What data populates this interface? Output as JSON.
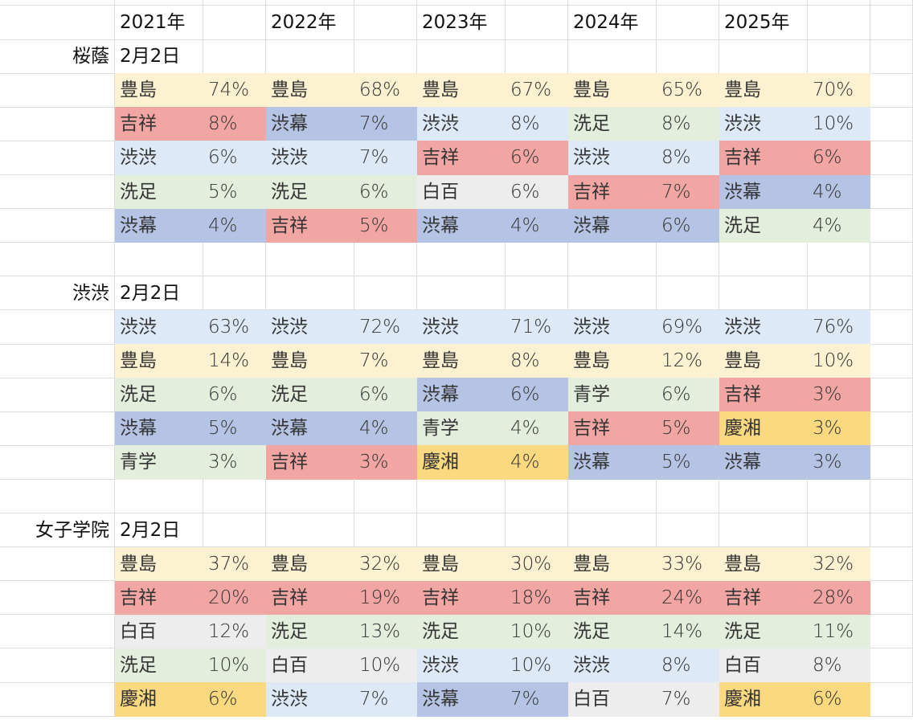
{
  "years": [
    "2021年",
    "2022年",
    "2023年",
    "2024年",
    "2025年"
  ],
  "colors": {
    "豊島": "#fcf1d1",
    "吉祥": "#f2a6a3",
    "渋幕": "#b5c4e4",
    "渋渋": "#dde9f6",
    "洗足": "#e3eedc",
    "白百": "#ededed",
    "慶湘": "#fbd980",
    "青学": "#e3eedc"
  },
  "sections": [
    {
      "school": "桜蔭",
      "date": "2月2日",
      "rows": [
        [
          [
            "豊島",
            "74%"
          ],
          [
            "豊島",
            "68%"
          ],
          [
            "豊島",
            "67%"
          ],
          [
            "豊島",
            "65%"
          ],
          [
            "豊島",
            "70%"
          ]
        ],
        [
          [
            "吉祥",
            "8%"
          ],
          [
            "渋幕",
            "7%"
          ],
          [
            "渋渋",
            "8%"
          ],
          [
            "洗足",
            "8%"
          ],
          [
            "渋渋",
            "10%"
          ]
        ],
        [
          [
            "渋渋",
            "6%"
          ],
          [
            "渋渋",
            "7%"
          ],
          [
            "吉祥",
            "6%"
          ],
          [
            "渋渋",
            "8%"
          ],
          [
            "吉祥",
            "6%"
          ]
        ],
        [
          [
            "洗足",
            "5%"
          ],
          [
            "洗足",
            "6%"
          ],
          [
            "白百",
            "6%"
          ],
          [
            "吉祥",
            "7%"
          ],
          [
            "渋幕",
            "4%"
          ]
        ],
        [
          [
            "渋幕",
            "4%"
          ],
          [
            "吉祥",
            "5%"
          ],
          [
            "渋幕",
            "4%"
          ],
          [
            "渋幕",
            "6%"
          ],
          [
            "洗足",
            "4%"
          ]
        ]
      ]
    },
    {
      "school": "渋渋",
      "date": "2月2日",
      "rows": [
        [
          [
            "渋渋",
            "63%"
          ],
          [
            "渋渋",
            "72%"
          ],
          [
            "渋渋",
            "71%"
          ],
          [
            "渋渋",
            "69%"
          ],
          [
            "渋渋",
            "76%"
          ]
        ],
        [
          [
            "豊島",
            "14%"
          ],
          [
            "豊島",
            "7%"
          ],
          [
            "豊島",
            "8%"
          ],
          [
            "豊島",
            "12%"
          ],
          [
            "豊島",
            "10%"
          ]
        ],
        [
          [
            "洗足",
            "6%"
          ],
          [
            "洗足",
            "6%"
          ],
          [
            "渋幕",
            "6%"
          ],
          [
            "青学",
            "6%"
          ],
          [
            "吉祥",
            "3%"
          ]
        ],
        [
          [
            "渋幕",
            "5%"
          ],
          [
            "渋幕",
            "4%"
          ],
          [
            "青学",
            "4%"
          ],
          [
            "吉祥",
            "5%"
          ],
          [
            "慶湘",
            "3%"
          ]
        ],
        [
          [
            "青学",
            "3%"
          ],
          [
            "吉祥",
            "3%"
          ],
          [
            "慶湘",
            "4%"
          ],
          [
            "渋幕",
            "5%"
          ],
          [
            "渋幕",
            "3%"
          ]
        ]
      ]
    },
    {
      "school": "女子学院",
      "date": "2月2日",
      "rows": [
        [
          [
            "豊島",
            "37%"
          ],
          [
            "豊島",
            "32%"
          ],
          [
            "豊島",
            "30%"
          ],
          [
            "豊島",
            "33%"
          ],
          [
            "豊島",
            "32%"
          ]
        ],
        [
          [
            "吉祥",
            "20%"
          ],
          [
            "吉祥",
            "19%"
          ],
          [
            "吉祥",
            "18%"
          ],
          [
            "吉祥",
            "24%"
          ],
          [
            "吉祥",
            "28%"
          ]
        ],
        [
          [
            "白百",
            "12%"
          ],
          [
            "洗足",
            "13%"
          ],
          [
            "洗足",
            "10%"
          ],
          [
            "洗足",
            "14%"
          ],
          [
            "洗足",
            "11%"
          ]
        ],
        [
          [
            "洗足",
            "10%"
          ],
          [
            "白百",
            "10%"
          ],
          [
            "渋渋",
            "10%"
          ],
          [
            "渋渋",
            "8%"
          ],
          [
            "白百",
            "8%"
          ]
        ],
        [
          [
            "慶湘",
            "6%"
          ],
          [
            "渋渋",
            "7%"
          ],
          [
            "渋幕",
            "7%"
          ],
          [
            "白百",
            "7%"
          ],
          [
            "慶湘",
            "6%"
          ]
        ]
      ]
    }
  ]
}
